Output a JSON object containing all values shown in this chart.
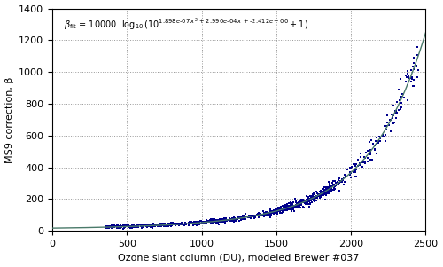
{
  "xlim": [
    0,
    2500
  ],
  "ylim": [
    0,
    1400
  ],
  "xticks": [
    0,
    500,
    1000,
    1500,
    2000,
    2500
  ],
  "yticks": [
    0,
    200,
    400,
    600,
    800,
    1000,
    1200,
    1400
  ],
  "xlabel": "Ozone slant column (DU), modeled Brewer #037",
  "ylabel": "MS9 correction, β",
  "fit_a": 1.898e-07,
  "fit_b": 0.000299,
  "fit_c": -2.412,
  "scatter_color": "#00008B",
  "fit_color": "#4a7a6a",
  "marker": "s",
  "markersize": 1.8,
  "grid_color": "#999999",
  "grid_linestyle": ":",
  "background_color": "#ffffff",
  "seed": 42,
  "noise_scale_low": 3,
  "noise_scale_high": 0.06
}
